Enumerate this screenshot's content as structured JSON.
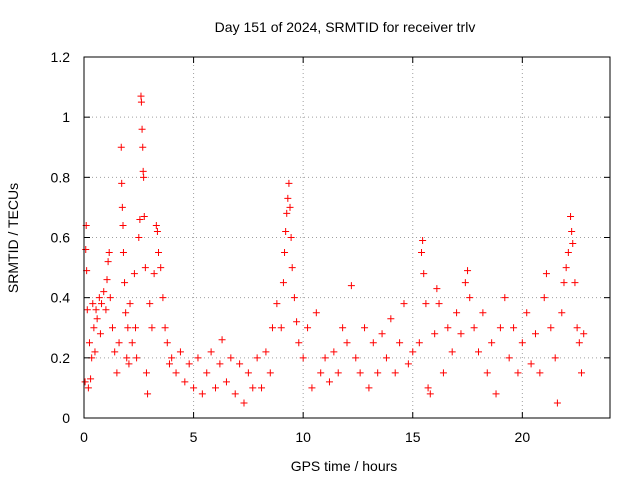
{
  "chart_data": {
    "type": "scatter",
    "title": "Day 151 of 2024, SRMTID for receiver trlv",
    "xlabel": "GPS time / hours",
    "ylabel": "SRMTID / TECUs",
    "xlim": [
      0,
      24
    ],
    "ylim": [
      0,
      1.2
    ],
    "xticks": [
      0,
      5,
      10,
      15,
      20
    ],
    "xtick_labels": [
      "0",
      "5",
      "10",
      "15",
      "20"
    ],
    "yticks": [
      0,
      0.2,
      0.4,
      0.6,
      0.8,
      1.0,
      1.2
    ],
    "ytick_labels": [
      "0",
      "0.2",
      "0.4",
      "0.6",
      "0.8",
      "1",
      "1.2"
    ],
    "grid": true,
    "marker": "+",
    "color": "#ff0000",
    "series": [
      {
        "name": "SRMTID",
        "points": [
          [
            0.05,
            0.12
          ],
          [
            0.08,
            0.56
          ],
          [
            0.1,
            0.64
          ],
          [
            0.12,
            0.49
          ],
          [
            0.15,
            0.36
          ],
          [
            0.2,
            0.1
          ],
          [
            0.25,
            0.25
          ],
          [
            0.3,
            0.13
          ],
          [
            0.35,
            0.2
          ],
          [
            0.4,
            0.38
          ],
          [
            0.45,
            0.3
          ],
          [
            0.5,
            0.22
          ],
          [
            0.55,
            0.36
          ],
          [
            0.6,
            0.33
          ],
          [
            0.7,
            0.4
          ],
          [
            0.75,
            0.28
          ],
          [
            0.8,
            0.38
          ],
          [
            0.9,
            0.42
          ],
          [
            1.0,
            0.36
          ],
          [
            1.05,
            0.46
          ],
          [
            1.1,
            0.52
          ],
          [
            1.15,
            0.55
          ],
          [
            1.2,
            0.4
          ],
          [
            1.3,
            0.3
          ],
          [
            1.4,
            0.22
          ],
          [
            1.5,
            0.15
          ],
          [
            1.6,
            0.25
          ],
          [
            1.7,
            0.9
          ],
          [
            1.72,
            0.78
          ],
          [
            1.75,
            0.7
          ],
          [
            1.78,
            0.64
          ],
          [
            1.8,
            0.55
          ],
          [
            1.85,
            0.45
          ],
          [
            1.9,
            0.35
          ],
          [
            1.95,
            0.2
          ],
          [
            2.0,
            0.3
          ],
          [
            2.05,
            0.18
          ],
          [
            2.1,
            0.38
          ],
          [
            2.2,
            0.25
          ],
          [
            2.3,
            0.48
          ],
          [
            2.35,
            0.3
          ],
          [
            2.4,
            0.2
          ],
          [
            2.5,
            0.6
          ],
          [
            2.55,
            0.66
          ],
          [
            2.6,
            1.07
          ],
          [
            2.62,
            1.05
          ],
          [
            2.65,
            0.96
          ],
          [
            2.68,
            0.9
          ],
          [
            2.7,
            0.82
          ],
          [
            2.72,
            0.8
          ],
          [
            2.75,
            0.67
          ],
          [
            2.8,
            0.5
          ],
          [
            2.85,
            0.15
          ],
          [
            2.9,
            0.08
          ],
          [
            3.0,
            0.38
          ],
          [
            3.1,
            0.3
          ],
          [
            3.2,
            0.48
          ],
          [
            3.3,
            0.64
          ],
          [
            3.35,
            0.62
          ],
          [
            3.4,
            0.55
          ],
          [
            3.5,
            0.5
          ],
          [
            3.6,
            0.4
          ],
          [
            3.7,
            0.3
          ],
          [
            3.8,
            0.25
          ],
          [
            3.9,
            0.18
          ],
          [
            4.0,
            0.2
          ],
          [
            4.2,
            0.15
          ],
          [
            4.4,
            0.22
          ],
          [
            4.6,
            0.12
          ],
          [
            4.8,
            0.18
          ],
          [
            5.0,
            0.1
          ],
          [
            5.2,
            0.2
          ],
          [
            5.4,
            0.08
          ],
          [
            5.6,
            0.15
          ],
          [
            5.8,
            0.22
          ],
          [
            6.0,
            0.1
          ],
          [
            6.2,
            0.18
          ],
          [
            6.3,
            0.26
          ],
          [
            6.5,
            0.12
          ],
          [
            6.7,
            0.2
          ],
          [
            6.9,
            0.08
          ],
          [
            7.1,
            0.18
          ],
          [
            7.3,
            0.05
          ],
          [
            7.5,
            0.15
          ],
          [
            7.7,
            0.1
          ],
          [
            7.9,
            0.2
          ],
          [
            8.1,
            0.1
          ],
          [
            8.3,
            0.22
          ],
          [
            8.5,
            0.15
          ],
          [
            8.6,
            0.3
          ],
          [
            8.8,
            0.38
          ],
          [
            9.0,
            0.3
          ],
          [
            9.1,
            0.45
          ],
          [
            9.15,
            0.55
          ],
          [
            9.2,
            0.62
          ],
          [
            9.25,
            0.68
          ],
          [
            9.3,
            0.73
          ],
          [
            9.35,
            0.78
          ],
          [
            9.4,
            0.7
          ],
          [
            9.45,
            0.6
          ],
          [
            9.5,
            0.5
          ],
          [
            9.6,
            0.4
          ],
          [
            9.7,
            0.32
          ],
          [
            9.8,
            0.25
          ],
          [
            10.0,
            0.2
          ],
          [
            10.2,
            0.3
          ],
          [
            10.4,
            0.1
          ],
          [
            10.6,
            0.35
          ],
          [
            10.8,
            0.15
          ],
          [
            11.0,
            0.2
          ],
          [
            11.2,
            0.12
          ],
          [
            11.4,
            0.22
          ],
          [
            11.6,
            0.15
          ],
          [
            11.8,
            0.3
          ],
          [
            12.0,
            0.25
          ],
          [
            12.2,
            0.44
          ],
          [
            12.4,
            0.2
          ],
          [
            12.6,
            0.15
          ],
          [
            12.8,
            0.3
          ],
          [
            13.0,
            0.1
          ],
          [
            13.2,
            0.25
          ],
          [
            13.4,
            0.15
          ],
          [
            13.6,
            0.28
          ],
          [
            13.8,
            0.2
          ],
          [
            14.0,
            0.33
          ],
          [
            14.2,
            0.15
          ],
          [
            14.4,
            0.25
          ],
          [
            14.6,
            0.38
          ],
          [
            14.8,
            0.18
          ],
          [
            15.0,
            0.22
          ],
          [
            15.3,
            0.25
          ],
          [
            15.4,
            0.55
          ],
          [
            15.45,
            0.59
          ],
          [
            15.5,
            0.48
          ],
          [
            15.6,
            0.38
          ],
          [
            15.7,
            0.1
          ],
          [
            15.8,
            0.08
          ],
          [
            16.0,
            0.28
          ],
          [
            16.1,
            0.43
          ],
          [
            16.2,
            0.38
          ],
          [
            16.4,
            0.15
          ],
          [
            16.6,
            0.3
          ],
          [
            16.8,
            0.22
          ],
          [
            17.0,
            0.35
          ],
          [
            17.2,
            0.28
          ],
          [
            17.4,
            0.45
          ],
          [
            17.5,
            0.49
          ],
          [
            17.6,
            0.4
          ],
          [
            17.8,
            0.3
          ],
          [
            18.0,
            0.22
          ],
          [
            18.2,
            0.35
          ],
          [
            18.4,
            0.15
          ],
          [
            18.6,
            0.25
          ],
          [
            18.8,
            0.08
          ],
          [
            19.0,
            0.3
          ],
          [
            19.2,
            0.4
          ],
          [
            19.4,
            0.2
          ],
          [
            19.6,
            0.3
          ],
          [
            19.8,
            0.15
          ],
          [
            20.0,
            0.25
          ],
          [
            20.2,
            0.35
          ],
          [
            20.4,
            0.18
          ],
          [
            20.6,
            0.28
          ],
          [
            20.8,
            0.15
          ],
          [
            21.0,
            0.4
          ],
          [
            21.1,
            0.48
          ],
          [
            21.3,
            0.3
          ],
          [
            21.5,
            0.2
          ],
          [
            21.6,
            0.05
          ],
          [
            21.8,
            0.35
          ],
          [
            21.9,
            0.45
          ],
          [
            22.0,
            0.5
          ],
          [
            22.1,
            0.55
          ],
          [
            22.2,
            0.67
          ],
          [
            22.25,
            0.62
          ],
          [
            22.3,
            0.58
          ],
          [
            22.4,
            0.45
          ],
          [
            22.5,
            0.3
          ],
          [
            22.6,
            0.25
          ],
          [
            22.7,
            0.15
          ],
          [
            22.8,
            0.28
          ]
        ]
      }
    ]
  }
}
